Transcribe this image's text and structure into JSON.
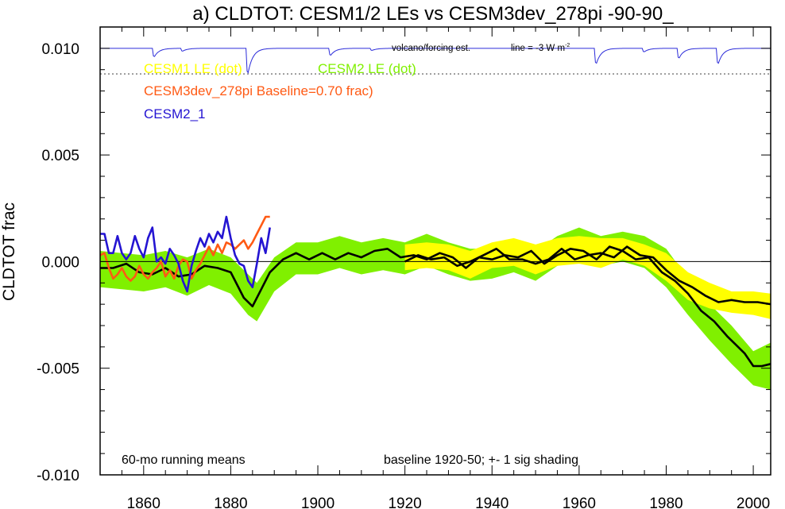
{
  "chart_data": {
    "type": "line",
    "title": "a) CLDTOT: CESM1/2 LEs vs CESM3dev_278pi -90-90_",
    "ylabel": "CLDTOT frac",
    "xlabel": "",
    "xlim": [
      1850,
      2004
    ],
    "ylim": [
      -0.01,
      0.011
    ],
    "x_ticks": [
      1860,
      1880,
      1900,
      1920,
      1940,
      1960,
      1980,
      2000
    ],
    "y_ticks": [
      {
        "value": 0.01,
        "label": "0.010"
      },
      {
        "value": 0.005,
        "label": "0.005"
      },
      {
        "value": 0.0,
        "label": "0.000"
      },
      {
        "value": -0.005,
        "label": "-0.005"
      },
      {
        "value": -0.01,
        "label": "-0.010"
      }
    ],
    "zero_line": 0.0,
    "grid": false,
    "legend_position": "top-left",
    "legend": [
      {
        "label": "CESM1 LE (dot)",
        "color": "#ffff00"
      },
      {
        "label": "CESM2 LE (dot)",
        "color": "#80f000"
      },
      {
        "label": "CESM3dev_278pi Baseline=0.70 frac)",
        "color": "#ff5a14"
      },
      {
        "label": "CESM2_1",
        "color": "#2414d2"
      }
    ],
    "volcano": {
      "label": "volcano/forcing est.",
      "line_label": "line = -3 W m",
      "line_label_sup": "-2",
      "line_value": 0.0088,
      "baseline": 0.01,
      "color": "#2b2bd9",
      "dips": [
        {
          "x": 1862,
          "depth": 0.0006
        },
        {
          "x": 1868.5,
          "depth": 0.0002
        },
        {
          "x": 1883.5,
          "depth": 0.0018
        },
        {
          "x": 1902.5,
          "depth": 0.0005
        },
        {
          "x": 1912,
          "depth": 0.00015
        },
        {
          "x": 1963.5,
          "depth": 0.0011
        },
        {
          "x": 1974.5,
          "depth": 0.00025
        },
        {
          "x": 1982.5,
          "depth": 0.0007
        },
        {
          "x": 1991.5,
          "depth": 0.0011
        }
      ]
    },
    "series": [
      {
        "name": "CESM2 LE (dot)",
        "kind": "band",
        "color": "#80f000",
        "x": [
          1850,
          1855,
          1860,
          1865,
          1870,
          1875,
          1880,
          1884,
          1886,
          1890,
          1895,
          1900,
          1905,
          1910,
          1915,
          1920,
          1925,
          1930,
          1935,
          1940,
          1945,
          1950,
          1955,
          1960,
          1965,
          1970,
          1975,
          1980,
          1985,
          1990,
          1995,
          2000,
          2004
        ],
        "upper": [
          0.0005,
          0.0004,
          0.0003,
          0.0005,
          0.0002,
          0.0006,
          0.0002,
          -0.0006,
          -0.001,
          0.0002,
          0.0009,
          0.0009,
          0.0012,
          0.0009,
          0.0011,
          0.0009,
          0.0013,
          0.0009,
          0.0006,
          0.0006,
          0.0009,
          0.0005,
          0.0012,
          0.0016,
          0.0012,
          0.0014,
          0.0012,
          0.0006,
          -0.0008,
          -0.002,
          -0.003,
          -0.0042,
          -0.0038
        ],
        "lower": [
          -0.0012,
          -0.0013,
          -0.0014,
          -0.0012,
          -0.0016,
          -0.0011,
          -0.0015,
          -0.0025,
          -0.0028,
          -0.0014,
          -0.0006,
          -0.0006,
          -0.0003,
          -0.0006,
          -0.0004,
          -0.0006,
          -0.0002,
          -0.0006,
          -0.0009,
          -0.0008,
          -0.0005,
          -0.0009,
          -0.0002,
          0.0002,
          -0.0002,
          0.0,
          -0.0003,
          -0.0012,
          -0.0025,
          -0.0037,
          -0.0048,
          -0.0058,
          -0.006
        ]
      },
      {
        "name": "CESM1 LE (dot)",
        "kind": "band",
        "color": "#ffff00",
        "x": [
          1920,
          1925,
          1930,
          1935,
          1940,
          1945,
          1950,
          1955,
          1960,
          1965,
          1970,
          1975,
          1980,
          1985,
          1990,
          1995,
          2000,
          2004
        ],
        "upper": [
          0.0008,
          0.0009,
          0.0008,
          0.0005,
          0.0009,
          0.0011,
          0.0008,
          0.0011,
          0.0012,
          0.0011,
          0.0011,
          0.0008,
          0.0004,
          -0.0005,
          -0.001,
          -0.0014,
          -0.0014,
          -0.0015
        ],
        "lower": [
          -0.0004,
          -0.0003,
          -0.0004,
          -0.0008,
          -0.0003,
          -0.0002,
          -0.0006,
          -0.0002,
          -0.0001,
          -0.0003,
          0.0001,
          -0.0002,
          -0.0009,
          -0.0018,
          -0.0022,
          -0.0024,
          -0.0025,
          -0.0027
        ]
      },
      {
        "name": "CESM2 LE mean",
        "kind": "line",
        "color": "#000000",
        "x": [
          1850,
          1853,
          1856,
          1859,
          1862,
          1865,
          1868,
          1871,
          1874,
          1877,
          1880,
          1883,
          1885,
          1887,
          1889,
          1892,
          1895,
          1898,
          1901,
          1904,
          1907,
          1910,
          1913,
          1916,
          1919,
          1922,
          1925,
          1928,
          1931,
          1934,
          1937,
          1940,
          1943,
          1946,
          1949,
          1952,
          1955,
          1958,
          1961,
          1964,
          1967,
          1970,
          1973,
          1976,
          1979,
          1982,
          1985,
          1988,
          1991,
          1994,
          1996,
          1998,
          2000,
          2002,
          2004
        ],
        "y": [
          -0.0003,
          -0.0003,
          -0.0001,
          -0.0005,
          -0.0006,
          -0.0003,
          -0.0007,
          -0.0006,
          -0.0002,
          -0.0003,
          -0.0005,
          -0.0017,
          -0.0021,
          -0.0013,
          -0.0005,
          0.0001,
          0.0004,
          0.0001,
          0.0004,
          0.0001,
          0.0004,
          0.0002,
          0.0005,
          0.0006,
          0.0002,
          0.0003,
          0.0001,
          0.0004,
          0.0002,
          -0.0003,
          0.0002,
          0.0001,
          0.0003,
          0.0002,
          0.0005,
          -0.0001,
          0.0003,
          0.0006,
          0.0005,
          0.0001,
          0.0007,
          0.0005,
          0.0001,
          0.0002,
          -0.0005,
          -0.0009,
          -0.0015,
          -0.0023,
          -0.0028,
          -0.0035,
          -0.0039,
          -0.0043,
          -0.0049,
          -0.0049,
          -0.0048
        ]
      },
      {
        "name": "CESM1 LE mean",
        "kind": "line",
        "color": "#000000",
        "x": [
          1920,
          1923,
          1926,
          1929,
          1932,
          1935,
          1938,
          1941,
          1944,
          1947,
          1950,
          1953,
          1956,
          1959,
          1962,
          1965,
          1968,
          1971,
          1974,
          1977,
          1980,
          1983,
          1986,
          1989,
          1992,
          1995,
          1998,
          2001,
          2004
        ],
        "y": [
          0.0,
          0.0003,
          0.0001,
          0.0002,
          -0.0002,
          0.0,
          0.0003,
          0.0006,
          0.0001,
          0.0001,
          -0.0001,
          0.0001,
          0.0006,
          0.0001,
          0.0003,
          0.0004,
          0.0002,
          0.0007,
          0.0003,
          0.0002,
          -0.0004,
          -0.0009,
          -0.0012,
          -0.0016,
          -0.0019,
          -0.0018,
          -0.0019,
          -0.0019,
          -0.002
        ]
      },
      {
        "name": "CESM3dev_278pi Baseline=0.70 frac)",
        "kind": "line",
        "color": "#ff5a14",
        "x": [
          1850,
          1851,
          1852,
          1853,
          1854,
          1855,
          1856,
          1857,
          1858,
          1859,
          1860,
          1861,
          1862,
          1863,
          1864,
          1865,
          1866,
          1867,
          1868,
          1869,
          1870,
          1871,
          1872,
          1873,
          1874,
          1875,
          1876,
          1877,
          1878,
          1879,
          1880,
          1881,
          1882,
          1883,
          1884,
          1885,
          1886,
          1887,
          1888,
          1889
        ],
        "y": [
          0.0003,
          0.0004,
          -0.0003,
          -0.0008,
          -0.0006,
          -0.0003,
          -0.0007,
          -0.0009,
          -0.0007,
          -0.0002,
          -0.0006,
          -0.0008,
          -0.0005,
          -0.0003,
          0.0,
          -0.0007,
          -0.0004,
          -0.0008,
          -0.0002,
          0.0001,
          0.0,
          -0.0008,
          -0.0004,
          -0.0001,
          0.0003,
          0.0007,
          0.0003,
          0.0008,
          0.0004,
          0.0009,
          0.0008,
          0.0006,
          0.0008,
          0.001,
          0.0006,
          0.0009,
          0.0013,
          0.0017,
          0.0021,
          0.0021
        ]
      },
      {
        "name": "CESM2_1",
        "kind": "line",
        "color": "#2414d2",
        "x": [
          1850,
          1851,
          1852,
          1853,
          1854,
          1855,
          1856,
          1857,
          1858,
          1859,
          1860,
          1861,
          1862,
          1863,
          1864,
          1865,
          1866,
          1867,
          1868,
          1869,
          1870,
          1871,
          1872,
          1873,
          1874,
          1875,
          1876,
          1877,
          1878,
          1879,
          1880,
          1881,
          1882,
          1883,
          1884,
          1885,
          1886,
          1887,
          1888,
          1889
        ],
        "y": [
          0.0013,
          0.0013,
          0.0004,
          0.0004,
          0.0012,
          0.0004,
          0.0001,
          0.0004,
          0.0012,
          0.0006,
          0.0002,
          0.0011,
          0.0016,
          0.0,
          0.0002,
          -0.0001,
          0.0006,
          0.0003,
          -0.0001,
          -0.0009,
          -0.0014,
          -0.0002,
          0.0005,
          0.0011,
          0.0007,
          0.0013,
          0.0009,
          0.0014,
          0.0011,
          0.0021,
          0.0011,
          0.0003,
          -0.0001,
          -0.0002,
          -0.0009,
          -0.0012,
          -0.0001,
          0.0011,
          0.0004,
          0.0016
        ]
      }
    ],
    "annotations": [
      {
        "text": "60-mo running means",
        "position": "bottom-left"
      },
      {
        "text": "baseline 1920-50; +- 1 sig shading",
        "position": "bottom-right"
      }
    ]
  }
}
